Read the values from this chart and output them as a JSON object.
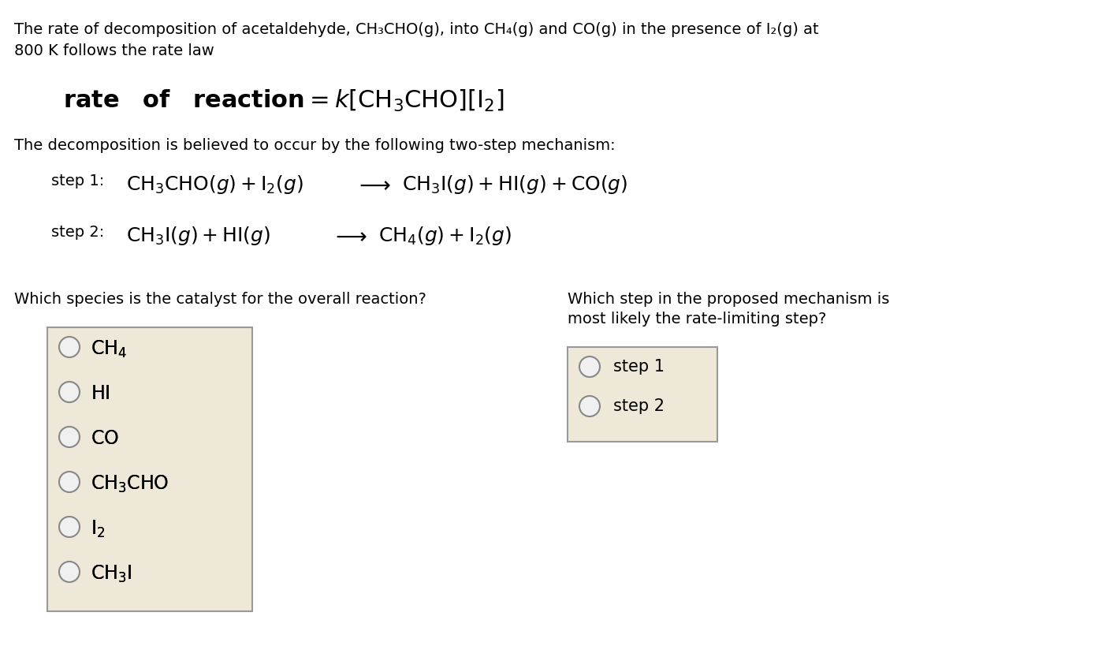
{
  "bg_color": "#ffffff",
  "box_bg_color": "#ede8d8",
  "box_border_color": "#999999",
  "text_color": "#000000",
  "para1": "The rate of decomposition of acetaldehyde, CH₃CHO(g), into CH₄(g) and CO(g) in the presence of I₂(g) at\n800 K follows the rate law",
  "rate_law_label": "rate   of   reaction",
  "rate_law_k": "k",
  "mechanism_intro": "The decomposition is believed to occur by the following two-step mechanism:",
  "step1_label": "step 1:",
  "step1_reactants": "CH₃CHO(g) + I₂(g)",
  "step1_arrow": "→",
  "step1_products": "CH₃I(g) + HI(g) + CO(g)",
  "step2_label": "step 2:",
  "step2_reactants": "CH₃I(g) + HI(g)",
  "step2_arrow": "→",
  "step2_products": "CH₄(g) + I₂(g)",
  "q1": "Which species is the catalyst for the overall reaction?",
  "q2_line1": "Which step in the proposed mechanism is",
  "q2_line2": "most likely the rate-limiting step?",
  "options_left": [
    "CH₄",
    "HI",
    "CO",
    "CH₃CHO",
    "I₂",
    "CH₃I"
  ],
  "options_right": [
    "step 1",
    "step 2"
  ],
  "font_size_body": 14,
  "font_size_step": 15,
  "font_size_rate": 18,
  "font_size_options": 15
}
